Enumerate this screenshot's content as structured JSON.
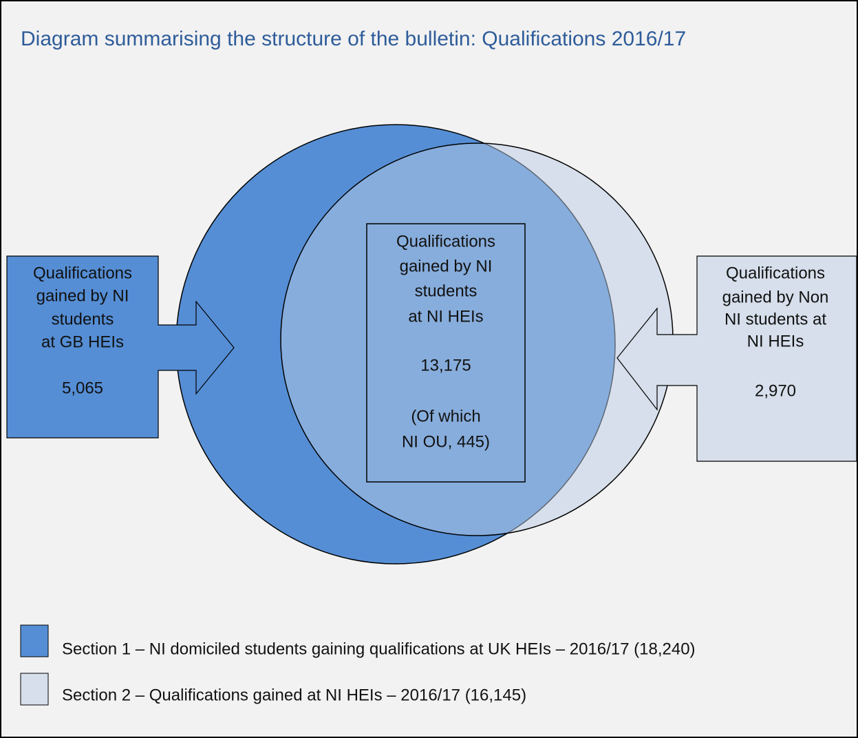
{
  "title": "Diagram summarising the structure of the bulletin: Qualifications 2016/17",
  "left_box": {
    "lines": [
      "Qualifications",
      "gained by NI",
      "students",
      "at GB HEIs"
    ],
    "value": "5,065"
  },
  "center_box": {
    "lines": [
      "Qualifications",
      "gained by NI",
      "students",
      "at NI HEIs"
    ],
    "value": "13,175",
    "note": [
      "(Of which",
      "NI OU, 445)"
    ]
  },
  "right_box": {
    "lines": [
      "Qualifications",
      "gained by Non",
      "NI students at",
      "NI HEIs"
    ],
    "value": "2,970"
  },
  "legend": [
    {
      "label": "Section 1 – NI domiciled students gaining qualifications at UK HEIs – 2016/17 (18,240)"
    },
    {
      "label": "Section 2 – Qualifications gained at NI HEIs – 2016/17 (16,145)"
    }
  ]
}
